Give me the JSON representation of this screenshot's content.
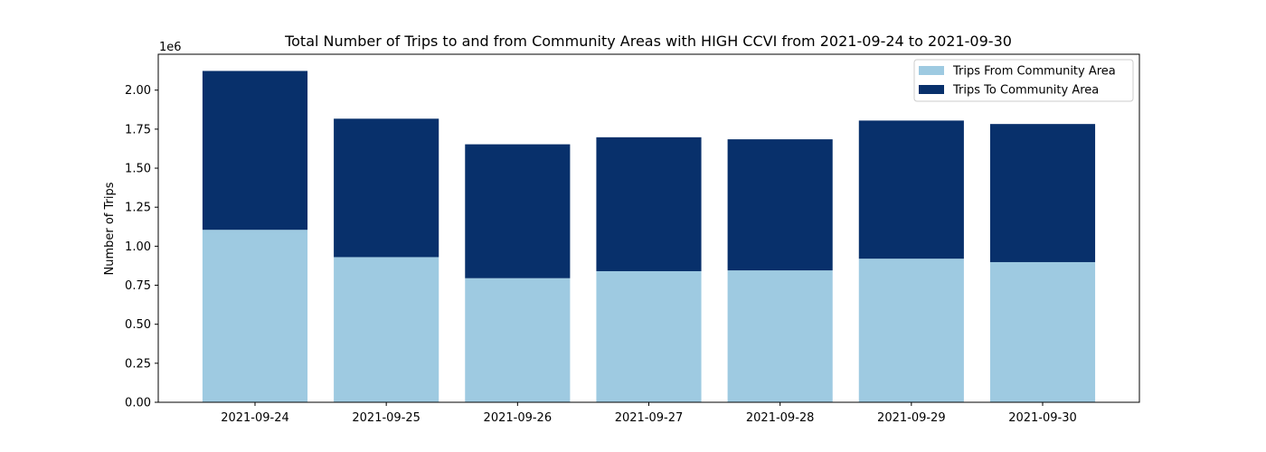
{
  "chart_data": {
    "type": "bar",
    "stacked": true,
    "title": "Total Number of Trips to and from Community Areas with HIGH CCVI from 2021-09-24 to 2021-09-30",
    "xlabel": "",
    "ylabel": "Number of Trips",
    "y_offset_label": "1e6",
    "categories": [
      "2021-09-24",
      "2021-09-25",
      "2021-09-26",
      "2021-09-27",
      "2021-09-28",
      "2021-09-29",
      "2021-09-30"
    ],
    "series": [
      {
        "name": "Trips From Community Area",
        "color": "#9ecae1",
        "values": [
          1105000,
          930000,
          795000,
          840000,
          845000,
          920000,
          898000
        ]
      },
      {
        "name": "Trips To Community Area",
        "color": "#08306b",
        "values": [
          1018000,
          887000,
          858000,
          858000,
          840000,
          885000,
          885000
        ]
      }
    ],
    "ylim": [
      0,
      2230000
    ],
    "yticks": [
      0,
      250000,
      500000,
      750000,
      1000000,
      1250000,
      1500000,
      1750000,
      2000000
    ],
    "ytick_labels": [
      "0.00",
      "0.25",
      "0.50",
      "0.75",
      "1.00",
      "1.25",
      "1.50",
      "1.75",
      "2.00"
    ],
    "grid": false,
    "legend_position": "top-right"
  }
}
